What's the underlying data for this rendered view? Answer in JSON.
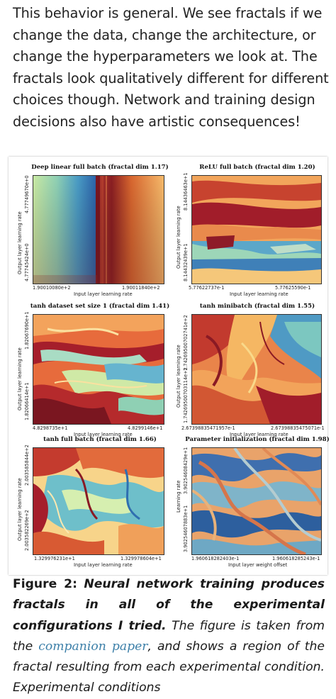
{
  "intro_text": "This behavior is general. We see fractals if we change the data, change the architecture, or change the hyperparameters we look at. The fractals look qualitatively different for different choices though. Network and training design decisions also have artistic consequences!",
  "panels": [
    {
      "title": "Deep linear full batch (fractal dim 1.17)",
      "ylabel": "Output layer learning rate",
      "xlabel": "Input layer learning rate",
      "y_top": "4.77749670e+0",
      "y_bottom": "4.77745424e+0",
      "x_left": "1.90010080e+2",
      "x_right": "1.90011840e+2"
    },
    {
      "title": "ReLU full batch (fractal dim 1.20)",
      "ylabel": "Output layer learning rate",
      "xlabel": "Input layer learning rate",
      "y_top": "8.14436463e+1",
      "y_bottom": "8.14432439e+1",
      "x_left": "5.77622737e-1",
      "x_right": "5.77625590e-1"
    },
    {
      "title": "tanh dataset set size 1 (fractal dim 1.41)",
      "ylabel": "Output layer learning rate",
      "xlabel": "Input layer learning rate",
      "y_top": "1.82067690e+1",
      "y_bottom": "1.82066414e+1",
      "x_left": "4.8298735e+1",
      "x_right": "4.8299146e+1"
    },
    {
      "title": "tanh minibatch (fractal dim 1.55)",
      "ylabel": "Output layer learning rate",
      "xlabel": "Input layer learning rate",
      "y_top": "1.74269500702741e+2",
      "y_bottom": "1.74269500703114e+2",
      "x_left": "2.67398835471957e-1",
      "x_right": "2.67398835475071e-1"
    },
    {
      "title": "tanh full batch (fractal dim 1.66)",
      "ylabel": "Output layer learning rate",
      "xlabel": "Input layer learning rate",
      "y_top": "2.003585844e+2",
      "y_bottom": "2.003582269e+2",
      "x_left": "1.329976231e+1",
      "x_right": "1.329978604e+1"
    },
    {
      "title": "Parameter initialization (fractal dim 1.98)",
      "ylabel": "Learning rate",
      "xlabel": "Input layer weight offset",
      "y_top": "3.90254608429e+1",
      "y_bottom": "3.90254607883e+1",
      "x_left": "1.960618282403e-1",
      "x_right": "1.960618285243e-1"
    }
  ],
  "caption": {
    "label": "Figure 2:",
    "bold_italic": "Neural network training produces fractals in all of the experimental configurations I tried.",
    "part1": "The figure is taken from the",
    "link": "companion paper",
    "part2": ", and shows a region of the fractal resulting from each experimental condition. Experimental conditions"
  },
  "colors": {
    "link": "#3c7fa8",
    "hot_red": "#b2182b",
    "cool_blue": "#2166ac"
  }
}
